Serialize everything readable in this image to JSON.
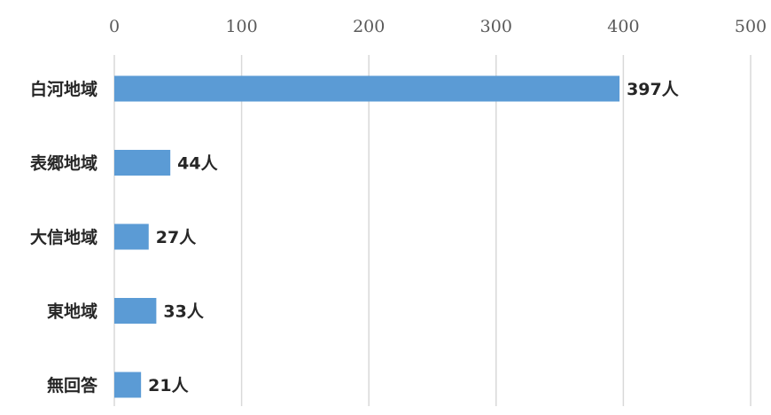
{
  "chart_data": {
    "type": "bar",
    "orientation": "horizontal",
    "title": "",
    "xlabel": "",
    "ylabel": "",
    "categories": [
      "白河地域",
      "表郷地域",
      "大信地域",
      "東地域",
      "無回答"
    ],
    "values": [
      397,
      44,
      27,
      33,
      21
    ],
    "data_labels": [
      "397人",
      "44人",
      "27人",
      "33人",
      "21人"
    ],
    "xlim": [
      0,
      500
    ],
    "x_ticks": [
      0,
      100,
      200,
      300,
      400,
      500
    ],
    "x_tick_labels": [
      "0",
      "100",
      "200",
      "300",
      "400",
      "500"
    ],
    "axis_position": "top",
    "grid": true,
    "legend": "none",
    "bar_color": "#5b9bd5",
    "grid_color": "#d9d9d9"
  }
}
